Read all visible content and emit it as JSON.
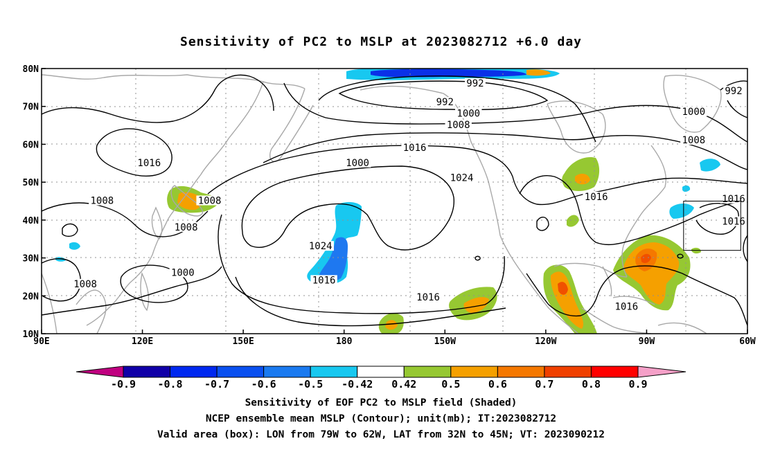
{
  "title": "Sensitivity of PC2 to MSLP at 2023082712 +6.0 day",
  "captions": [
    "Sensitivity of EOF PC2 to MSLP field (Shaded)",
    "NCEP ensemble mean MSLP (Contour); unit(mb); IT:2023082712",
    "Valid area (box): LON from 79W to 62W, LAT from 32N to 45N; VT: 2023090212"
  ],
  "map": {
    "lon_range": [
      90,
      300
    ],
    "lat_range": [
      10,
      80
    ],
    "lon_ticks": [
      {
        "lon": 90,
        "label": "90E"
      },
      {
        "lon": 120,
        "label": "120E"
      },
      {
        "lon": 150,
        "label": "150E"
      },
      {
        "lon": 180,
        "label": "180"
      },
      {
        "lon": 210,
        "label": "150W"
      },
      {
        "lon": 240,
        "label": "120W"
      },
      {
        "lon": 270,
        "label": "90W"
      },
      {
        "lon": 300,
        "label": "60W"
      }
    ],
    "lat_ticks": [
      {
        "lat": 10,
        "label": "10N"
      },
      {
        "lat": 20,
        "label": "20N"
      },
      {
        "lat": 30,
        "label": "30N"
      },
      {
        "lat": 40,
        "label": "40N"
      },
      {
        "lat": 50,
        "label": "50N"
      },
      {
        "lat": 60,
        "label": "60N"
      },
      {
        "lat": 70,
        "label": "70N"
      },
      {
        "lat": 80,
        "label": "80N"
      }
    ],
    "valid_box": {
      "lon_min": 281,
      "lon_max": 298,
      "lat_min": 32,
      "lat_max": 45
    },
    "contour_labels": [
      {
        "text": "992",
        "lon": 219,
        "lat": 76
      },
      {
        "text": "992",
        "lon": 210,
        "lat": 71
      },
      {
        "text": "992",
        "lon": 308,
        "lat": 74
      },
      {
        "text": "1000",
        "lon": 217,
        "lat": 68
      },
      {
        "text": "1000",
        "lon": 284,
        "lat": 68.5
      },
      {
        "text": "1000",
        "lon": 184,
        "lat": 55
      },
      {
        "text": "1000",
        "lon": 132,
        "lat": 26
      },
      {
        "text": "1008",
        "lon": 214,
        "lat": 65
      },
      {
        "text": "1008",
        "lon": 284,
        "lat": 61
      },
      {
        "text": "1008",
        "lon": 108,
        "lat": 45
      },
      {
        "text": "1008",
        "lon": 140,
        "lat": 45
      },
      {
        "text": "1008",
        "lon": 133,
        "lat": 38
      },
      {
        "text": "1008",
        "lon": 103,
        "lat": 23
      },
      {
        "text": "1016",
        "lon": 122,
        "lat": 55
      },
      {
        "text": "1016",
        "lon": 201,
        "lat": 59
      },
      {
        "text": "1016",
        "lon": 255,
        "lat": 46
      },
      {
        "text": "1016",
        "lon": 297,
        "lat": 45.5
      },
      {
        "text": "1016",
        "lon": 299,
        "lat": 39.5
      },
      {
        "text": "1016",
        "lon": 174,
        "lat": 24
      },
      {
        "text": "1016",
        "lon": 205,
        "lat": 19.5
      },
      {
        "text": "1016",
        "lon": 264,
        "lat": 17
      },
      {
        "text": "1024",
        "lon": 215,
        "lat": 51
      },
      {
        "text": "1024",
        "lon": 173,
        "lat": 33
      }
    ],
    "shading_colors": {
      "neg_strong": "#0a30e8",
      "neg_mid": "#1e78f0",
      "neg_weak": "#18c8f0",
      "pos_weak": "#96c832",
      "pos_mid": "#f5a000",
      "pos_strong": "#f05000"
    }
  },
  "colorbar": {
    "labels": [
      "-0.9",
      "-0.8",
      "-0.7",
      "-0.6",
      "-0.5",
      "-0.42",
      "0.42",
      "0.5",
      "0.6",
      "0.7",
      "0.8",
      "0.9"
    ],
    "colors": [
      "#1000a8",
      "#0028f0",
      "#0a50f0",
      "#1a7af0",
      "#18c8f0",
      "#ffffff",
      "#96c832",
      "#f5a000",
      "#f57800",
      "#f04000",
      "#ff0000"
    ],
    "left_tri_color": "#c00080",
    "right_tri_color": "#f5a0c8"
  }
}
